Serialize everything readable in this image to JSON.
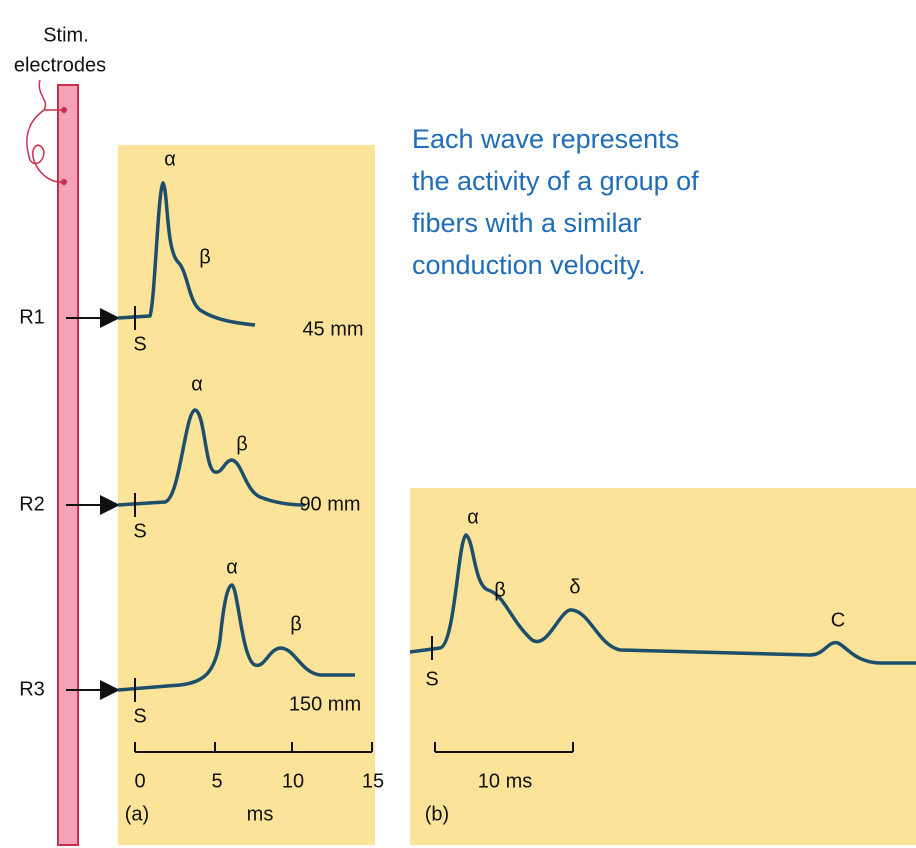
{
  "stimulus": {
    "lines": [
      "Stim.",
      "electrodes"
    ]
  },
  "recordings": [
    {
      "label": "R1",
      "distance": "45 mm",
      "stim": "S",
      "peaks": [
        "α",
        "β"
      ]
    },
    {
      "label": "R2",
      "distance": "90 mm",
      "stim": "S",
      "peaks": [
        "α",
        "β"
      ]
    },
    {
      "label": "R3",
      "distance": "150 mm",
      "stim": "S",
      "peaks": [
        "α",
        "β"
      ]
    }
  ],
  "panel_a": {
    "ticks": [
      "0",
      "5",
      "10",
      "15"
    ],
    "unit": "ms",
    "label": "(a)"
  },
  "panel_b": {
    "scale": "10 ms",
    "label": "(b)",
    "stim": "S",
    "peaks": [
      "α",
      "β",
      "δ",
      "C"
    ]
  },
  "note": {
    "lines": [
      "Each wave represents",
      "the activity of a group of",
      "fibers with a similar",
      "conduction velocity."
    ]
  }
}
